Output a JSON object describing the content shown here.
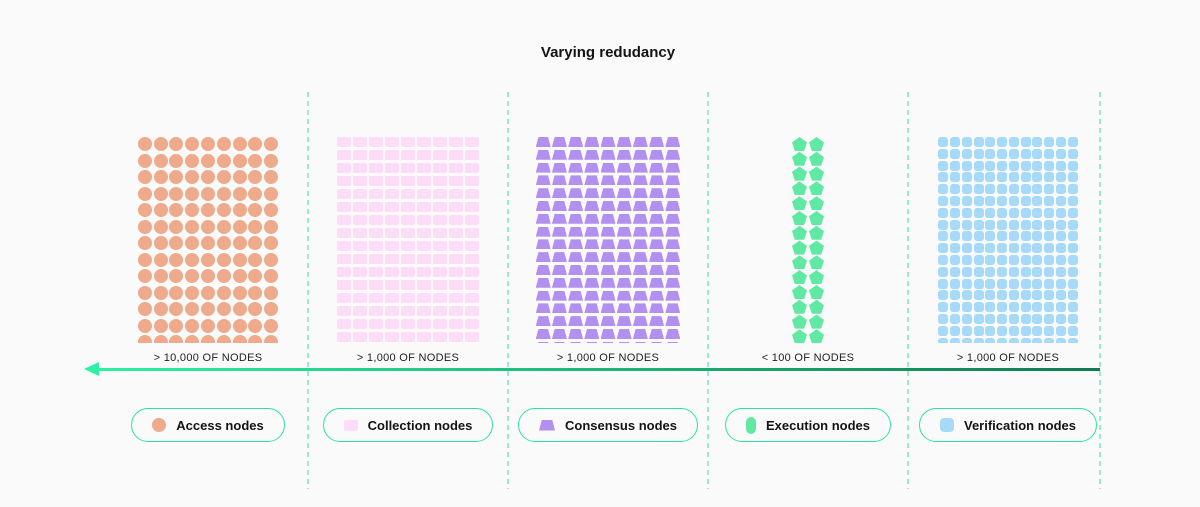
{
  "title": "Varying redudancy",
  "arrow": {
    "direction": "left",
    "color_start": "#2df0a4",
    "color_end": "#0e7b50"
  },
  "separator_color": "#97eec9",
  "legend_border_color": "#2be49e",
  "columns": [
    {
      "id": "access",
      "label": "> 10,000 OF NODES",
      "legend": "Access nodes",
      "shape": "circle",
      "color": "#efaa8b",
      "grid": {
        "cols": 9,
        "rows": 13
      }
    },
    {
      "id": "collection",
      "label": "> 1,000 OF NODES",
      "legend": "Collection nodes",
      "shape": "rect",
      "color": "#fcdcf6",
      "grid": {
        "cols": 9,
        "rows": 17
      }
    },
    {
      "id": "consensus",
      "label": "> 1,000 OF NODES",
      "legend": "Consensus nodes",
      "shape": "trapezoid",
      "color": "#b290f0",
      "grid": {
        "cols": 9,
        "rows": 17
      }
    },
    {
      "id": "execution",
      "label": "< 100 OF NODES",
      "legend": "Execution nodes",
      "shape": "pentagon",
      "color": "#5fe9a2",
      "grid": {
        "cols": 2,
        "rows": 14
      }
    },
    {
      "id": "verification",
      "label": "> 1,000 OF NODES",
      "legend": "Verification nodes",
      "shape": "rsquare",
      "color": "#a7daf9",
      "grid": {
        "cols": 12,
        "rows": 19
      }
    }
  ]
}
